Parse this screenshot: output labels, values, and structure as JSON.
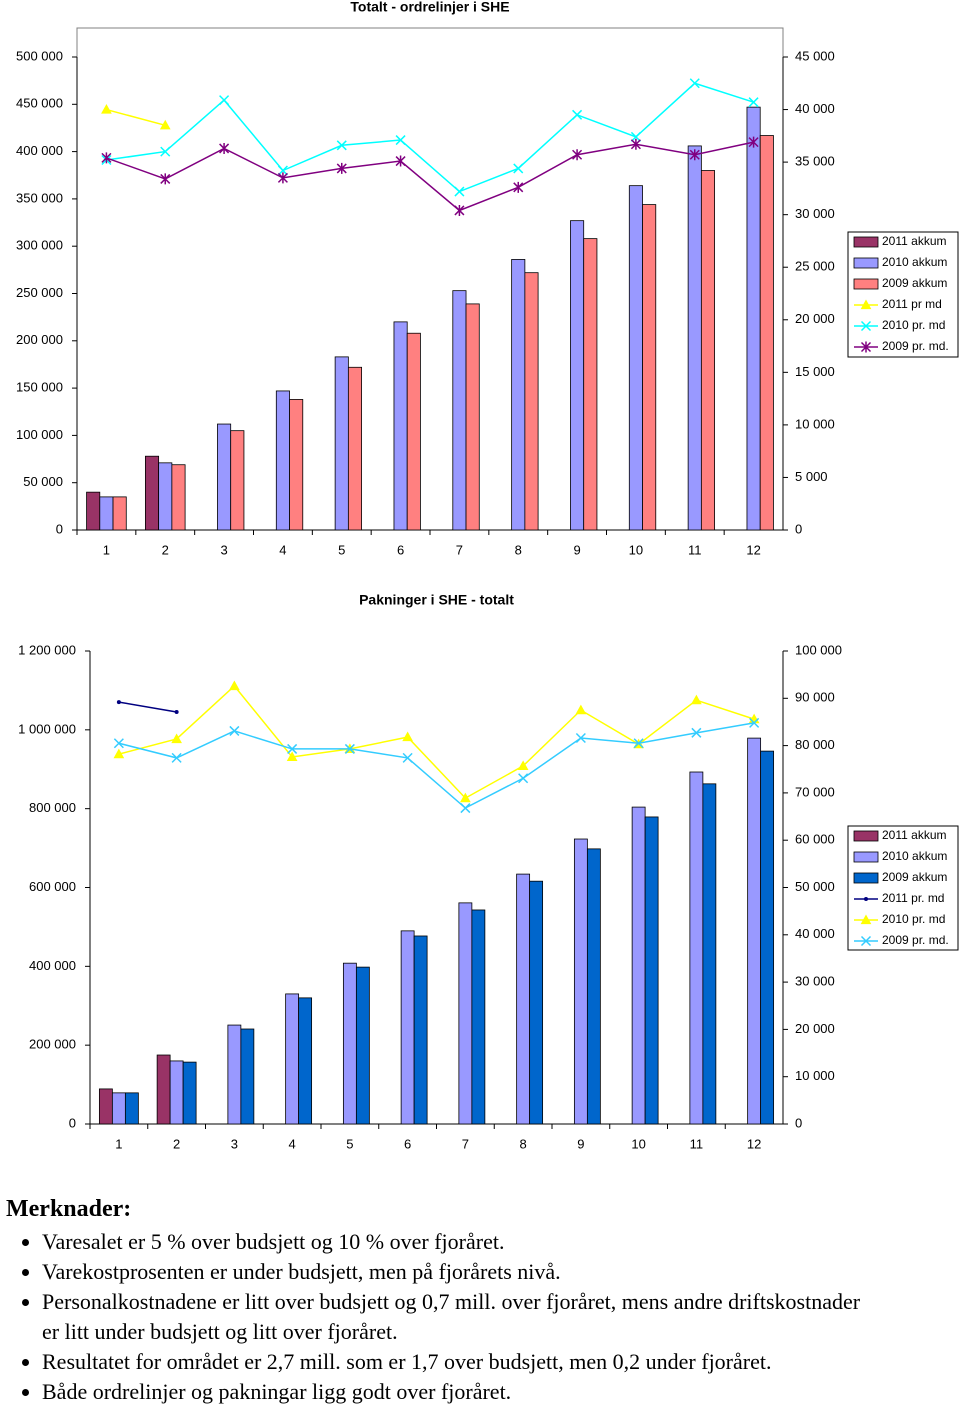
{
  "chart_data": [
    {
      "type": "bar",
      "title": "Totalt - ordrelinjer i SHE",
      "categories": [
        "1",
        "2",
        "3",
        "4",
        "5",
        "6",
        "7",
        "8",
        "9",
        "10",
        "11",
        "12"
      ],
      "ylim": [
        0,
        500000
      ],
      "yticks": [
        0,
        {
          "value": 50000,
          "label": "50 000"
        },
        {
          "value": 100000,
          "label": "100 000"
        },
        {
          "value": 150000,
          "label": "150 000"
        },
        {
          "value": 200000,
          "label": "200 000"
        },
        {
          "value": 250000,
          "label": "250 000"
        },
        {
          "value": 300000,
          "label": "300 000"
        },
        {
          "value": 350000,
          "label": "350 000"
        },
        {
          "value": 400000,
          "label": "400 000"
        },
        {
          "value": 450000,
          "label": "450 000"
        },
        {
          "value": 500000,
          "label": "500 000"
        }
      ],
      "y2lim": [
        0,
        45000
      ],
      "y2ticks": [
        0,
        {
          "value": 5000,
          "label": "5 000"
        },
        {
          "value": 10000,
          "label": "10 000"
        },
        {
          "value": 15000,
          "label": "15 000"
        },
        {
          "value": 20000,
          "label": "20 000"
        },
        {
          "value": 25000,
          "label": "25 000"
        },
        {
          "value": 30000,
          "label": "30 000"
        },
        {
          "value": 35000,
          "label": "35 000"
        },
        {
          "value": 40000,
          "label": "40 000"
        },
        {
          "value": 45000,
          "label": "45 000"
        }
      ],
      "legend": "right",
      "series": [
        {
          "name": "2011 akkum",
          "color": "#993366",
          "values": [
            40000,
            78000,
            null,
            null,
            null,
            null,
            null,
            null,
            null,
            null,
            null,
            null
          ]
        },
        {
          "name": "2010 akkum",
          "color": "#9999ff",
          "values": [
            35000,
            71000,
            112000,
            147000,
            183000,
            220000,
            253000,
            286000,
            327000,
            364000,
            406000,
            447000
          ]
        },
        {
          "name": "2009 akkum",
          "color": "#ff8080",
          "values": [
            35000,
            69000,
            105000,
            138000,
            172000,
            208000,
            239000,
            272000,
            308000,
            344000,
            380000,
            417000
          ]
        },
        {
          "name": "2011 pr md",
          "color": "#ffff00",
          "axis": "y2",
          "marker": "triangle",
          "values": [
            40000,
            38500,
            null,
            null,
            null,
            null,
            null,
            null,
            null,
            null,
            null,
            null
          ]
        },
        {
          "name": "2010 pr. md",
          "color": "#00ffff",
          "axis": "y2",
          "marker": "x",
          "values": [
            35200,
            36000,
            40900,
            34200,
            36600,
            37100,
            32200,
            34400,
            39500,
            37400,
            42500,
            40700
          ]
        },
        {
          "name": "2009 pr. md.",
          "color": "#800080",
          "axis": "y2",
          "marker": "star",
          "values": [
            35400,
            33400,
            36300,
            33500,
            34400,
            35100,
            30400,
            32600,
            35700,
            36700,
            35700,
            36900
          ]
        }
      ]
    },
    {
      "type": "bar",
      "title": "Pakninger i SHE - totalt",
      "categories": [
        "1",
        "2",
        "3",
        "4",
        "5",
        "6",
        "7",
        "8",
        "9",
        "10",
        "11",
        "12"
      ],
      "ylim": [
        0,
        1200000
      ],
      "yticks": [
        0,
        {
          "value": 200000,
          "label": "200 000"
        },
        {
          "value": 400000,
          "label": "400 000"
        },
        {
          "value": 600000,
          "label": "600 000"
        },
        {
          "value": 800000,
          "label": "800 000"
        },
        {
          "value": 1000000,
          "label": "1 000 000"
        },
        {
          "value": 1200000,
          "label": "1 200 000"
        }
      ],
      "y2lim": [
        0,
        100000
      ],
      "y2ticks": [
        0,
        {
          "value": 10000,
          "label": "10 000"
        },
        {
          "value": 20000,
          "label": "20 000"
        },
        {
          "value": 30000,
          "label": "30 000"
        },
        {
          "value": 40000,
          "label": "40 000"
        },
        {
          "value": 50000,
          "label": "50 000"
        },
        {
          "value": 60000,
          "label": "60 000"
        },
        {
          "value": 70000,
          "label": "70 000"
        },
        {
          "value": 80000,
          "label": "80 000"
        },
        {
          "value": 90000,
          "label": "90 000"
        },
        {
          "value": 100000,
          "label": "100 000"
        }
      ],
      "legend": "right",
      "series": [
        {
          "name": "2011 akkum",
          "color": "#993366",
          "values": [
            89000,
            175000,
            null,
            null,
            null,
            null,
            null,
            null,
            null,
            null,
            null,
            null
          ]
        },
        {
          "name": "2010 akkum",
          "color": "#9999ff",
          "values": [
            79000,
            160000,
            251000,
            330000,
            408000,
            490000,
            561000,
            634000,
            723000,
            804000,
            893000,
            979000
          ]
        },
        {
          "name": "2009 akkum",
          "color": "#0066cc",
          "values": [
            79000,
            157000,
            241000,
            320000,
            398000,
            477000,
            543000,
            616000,
            698000,
            779000,
            863000,
            946000
          ]
        },
        {
          "name": "2011 pr. md",
          "color": "#000080",
          "axis": "y2",
          "marker": "dot",
          "values": [
            89200,
            87100,
            null,
            null,
            null,
            null,
            null,
            null,
            null,
            null,
            null,
            null
          ]
        },
        {
          "name": "2010 pr. md",
          "color": "#ffff00",
          "axis": "y2",
          "marker": "triangle",
          "values": [
            78200,
            81400,
            92600,
            77600,
            79300,
            81800,
            68900,
            75700,
            87500,
            80300,
            89600,
            85600
          ]
        },
        {
          "name": "2009 pr. md.",
          "color": "#33ccff",
          "axis": "y2",
          "marker": "x",
          "values": [
            80500,
            77400,
            83100,
            79300,
            79300,
            77400,
            66800,
            73100,
            81600,
            80500,
            82700,
            84800
          ]
        }
      ]
    }
  ],
  "notes": {
    "title": "Merknader:",
    "items": [
      "Varesalet er 5 % over budsjett og 10 % over fjoråret.",
      "Varekostprosenten er under budsjett, men på fjorårets nivå.",
      "Personalkostnadene er litt over budsjett og 0,7 mill. over fjoråret, mens andre driftskostnader er litt under budsjett og litt over fjoråret.",
      "Resultatet for området er 2,7 mill. som er 1,7 over budsjett, men 0,2 under fjoråret.",
      "Både ordrelinjer og pakningar ligg godt over fjoråret."
    ]
  }
}
